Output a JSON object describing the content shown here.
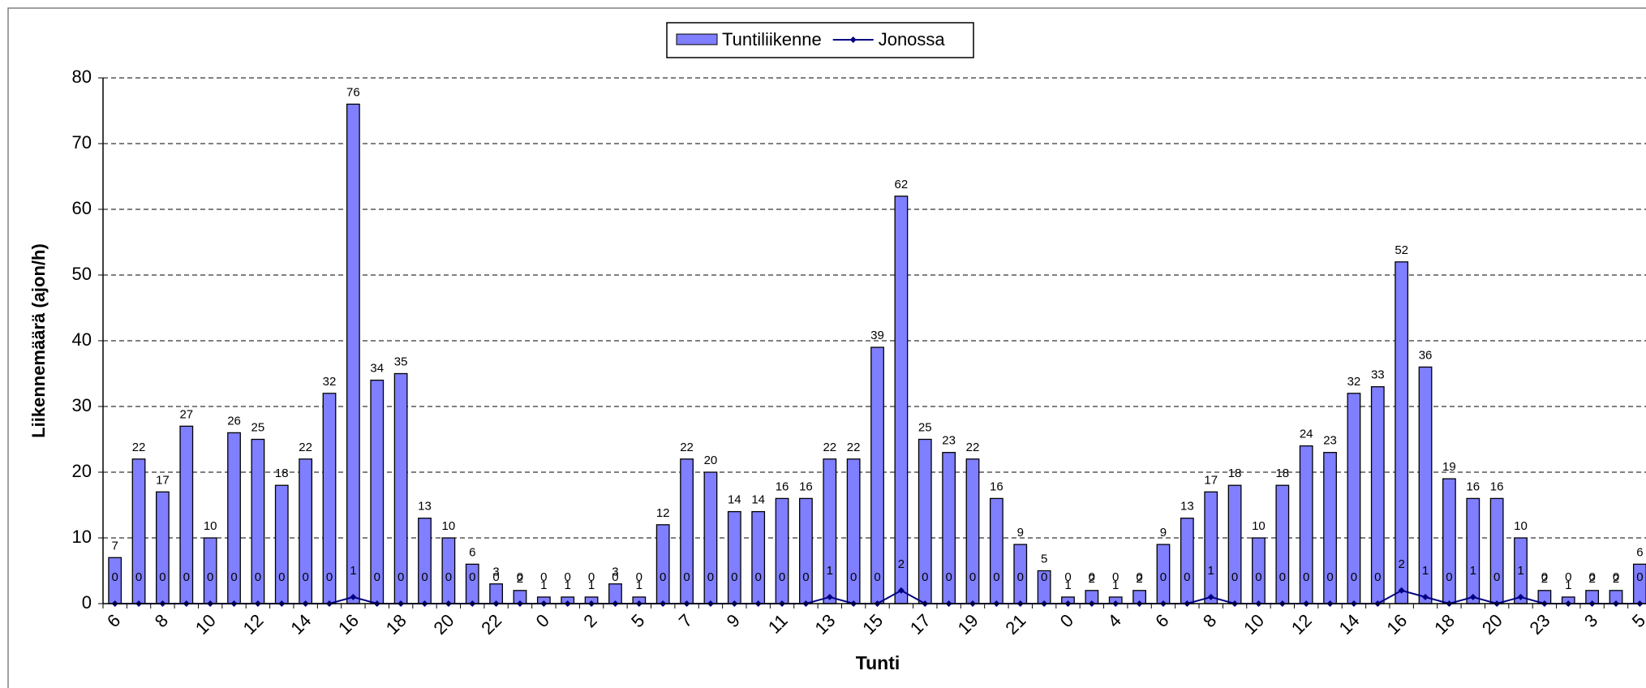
{
  "chart_data": {
    "type": "bar_line",
    "x_label": "Tunti",
    "y_label": "Liikennemäärä (ajon/h)",
    "categories": [
      "6",
      null,
      "8",
      null,
      "10",
      null,
      "12",
      null,
      "14",
      null,
      "16",
      null,
      "18",
      null,
      "20",
      null,
      "22",
      null,
      "0",
      null,
      "2",
      null,
      "5",
      null,
      "7",
      null,
      "9",
      null,
      "11",
      null,
      "13",
      null,
      "15",
      null,
      "17",
      null,
      "19",
      null,
      "21",
      null,
      "0",
      null,
      "4",
      null,
      "6",
      null,
      "8",
      null,
      "10",
      null,
      "12",
      null,
      "14",
      null,
      "16",
      null,
      "18",
      null,
      "20",
      null,
      "23",
      null,
      "3",
      null,
      "5"
    ],
    "series": [
      {
        "name": "Tuntiliikenne",
        "type": "bar",
        "color": "#7f7fff",
        "values": [
          7,
          22,
          17,
          27,
          10,
          26,
          25,
          18,
          22,
          32,
          76,
          34,
          35,
          13,
          10,
          6,
          3,
          2,
          1,
          1,
          1,
          3,
          1,
          12,
          22,
          20,
          14,
          14,
          16,
          16,
          22,
          22,
          39,
          62,
          25,
          23,
          22,
          16,
          9,
          5,
          1,
          2,
          1,
          2,
          9,
          13,
          17,
          18,
          10,
          18,
          24,
          23,
          32,
          33,
          52,
          36,
          19,
          16,
          16,
          10,
          2,
          1,
          2,
          2,
          6
        ]
      },
      {
        "name": "Jonossa",
        "type": "line",
        "color": "#000080",
        "values": [
          0,
          0,
          0,
          0,
          0,
          0,
          0,
          0,
          0,
          0,
          1,
          0,
          0,
          0,
          0,
          0,
          0,
          0,
          0,
          0,
          0,
          0,
          0,
          0,
          0,
          0,
          0,
          0,
          0,
          0,
          1,
          0,
          0,
          2,
          0,
          0,
          0,
          0,
          0,
          0,
          0,
          0,
          0,
          0,
          0,
          0,
          1,
          0,
          0,
          0,
          0,
          0,
          0,
          0,
          2,
          1,
          0,
          1,
          0,
          1,
          0,
          0,
          0,
          0,
          0
        ]
      }
    ],
    "ylim": [
      0,
      80
    ],
    "yticks": [
      0,
      10,
      20,
      30,
      40,
      50,
      60,
      70,
      80
    ],
    "grid": true
  }
}
